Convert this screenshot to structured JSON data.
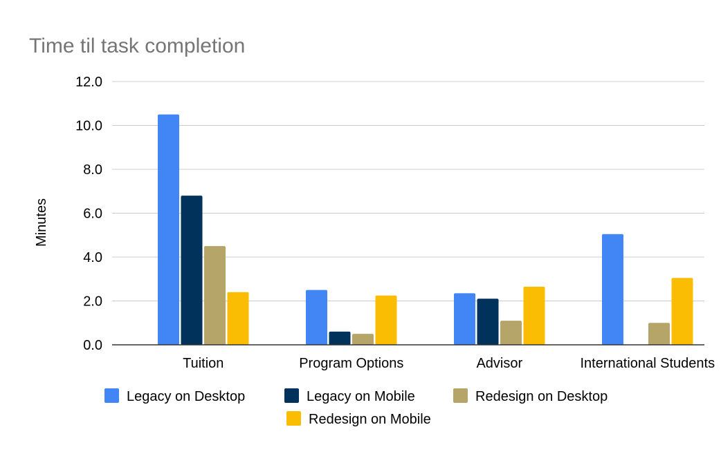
{
  "chart_data": {
    "type": "bar",
    "title": "Time til task completion",
    "xlabel": "",
    "ylabel": "Minutes",
    "ylim": [
      0,
      12
    ],
    "yticks": [
      "0.0",
      "2.0",
      "4.0",
      "6.0",
      "8.0",
      "10.0",
      "12.0"
    ],
    "grid": true,
    "legend_position": "bottom",
    "categories": [
      "Tuition",
      "Program Options",
      "Advisor",
      "International Students"
    ],
    "series": [
      {
        "name": "Legacy on Desktop",
        "color": "#4285f4",
        "values": [
          10.5,
          2.5,
          2.35,
          5.05
        ]
      },
      {
        "name": "Legacy on Mobile",
        "color": "#01325b",
        "values": [
          6.8,
          0.6,
          2.1,
          null
        ]
      },
      {
        "name": "Redesign on Desktop",
        "color": "#b5a569",
        "values": [
          4.5,
          0.5,
          1.1,
          1.0
        ]
      },
      {
        "name": "Redesign on Mobile",
        "color": "#fbbc04",
        "values": [
          2.4,
          2.25,
          2.65,
          3.05
        ]
      }
    ]
  }
}
